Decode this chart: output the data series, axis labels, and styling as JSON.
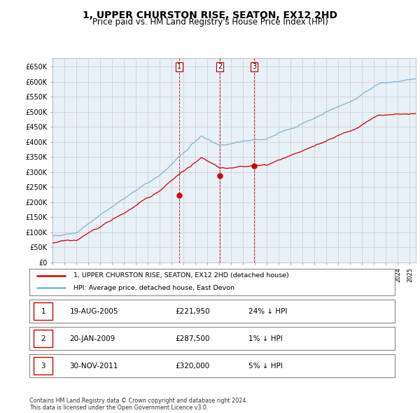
{
  "title": "1, UPPER CHURSTON RISE, SEATON, EX12 2HD",
  "subtitle": "Price paid vs. HM Land Registry's House Price Index (HPI)",
  "title_fontsize": 10,
  "subtitle_fontsize": 8.5,
  "ylabel_ticks": [
    "£0",
    "£50K",
    "£100K",
    "£150K",
    "£200K",
    "£250K",
    "£300K",
    "£350K",
    "£400K",
    "£450K",
    "£500K",
    "£550K",
    "£600K",
    "£650K"
  ],
  "ytick_values": [
    0,
    50000,
    100000,
    150000,
    200000,
    250000,
    300000,
    350000,
    400000,
    450000,
    500000,
    550000,
    600000,
    650000
  ],
  "xlim_start": 1995.0,
  "xlim_end": 2025.5,
  "ylim_min": 0,
  "ylim_max": 680000,
  "sale_dates": [
    2005.63,
    2009.05,
    2011.92
  ],
  "sale_prices": [
    221950,
    287500,
    320000
  ],
  "sale_labels": [
    "1",
    "2",
    "3"
  ],
  "hpi_color": "#7ab4d8",
  "price_color": "#cc0000",
  "grid_color": "#cccccc",
  "chart_bg_color": "#e8f0f8",
  "legend_entries": [
    "1, UPPER CHURSTON RISE, SEATON, EX12 2HD (detached house)",
    "HPI: Average price, detached house, East Devon"
  ],
  "table_rows": [
    {
      "num": "1",
      "date": "19-AUG-2005",
      "price": "£221,950",
      "change": "24% ↓ HPI"
    },
    {
      "num": "2",
      "date": "20-JAN-2009",
      "price": "£287,500",
      "change": "1% ↓ HPI"
    },
    {
      "num": "3",
      "date": "30-NOV-2011",
      "price": "£320,000",
      "change": "5% ↓ HPI"
    }
  ],
  "footnote": "Contains HM Land Registry data © Crown copyright and database right 2024.\nThis data is licensed under the Open Government Licence v3.0."
}
